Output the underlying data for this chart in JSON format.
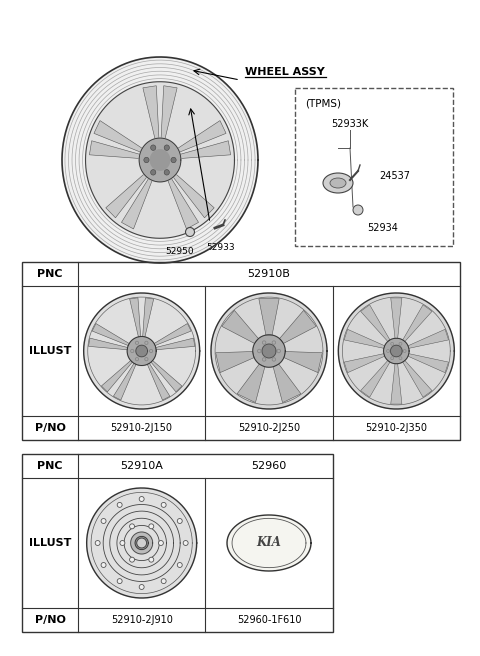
{
  "bg_color": "#ffffff",
  "wheel_assy_label": "WHEEL ASSY",
  "tpms_label": "(TPMS)",
  "part_labels_top": [
    "52950",
    "52933"
  ],
  "tpms_parts": [
    "52933K",
    "24537",
    "52934"
  ],
  "table1_pnc": "52910B",
  "table1_cols": [
    "52910-2J150",
    "52910-2J250",
    "52910-2J350"
  ],
  "table2_pnc_cols": [
    "52910A",
    "52960"
  ],
  "table2_cols": [
    "52910-2J910",
    "52960-1F610"
  ],
  "label_pnc": "PNC",
  "label_illust": "ILLUST",
  "label_pno": "P/NO",
  "text_color": "#000000"
}
